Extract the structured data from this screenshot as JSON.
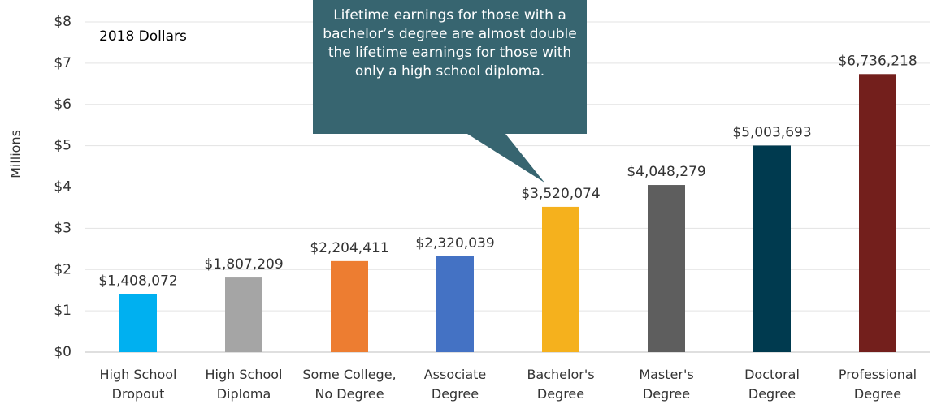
{
  "chart_data": {
    "type": "bar",
    "subtitle": "2018 Dollars",
    "ylabel": "Millions",
    "annotation": "Lifetime earnings for those with a bachelor’s degree are almost double the lifetime earnings for those with only a high school diploma.",
    "categories": [
      "High School Dropout",
      "High School Diploma",
      "Some College, No Degree",
      "Associate Degree",
      "Bachelor's Degree",
      "Master's Degree",
      "Doctoral Degree",
      "Professional Degree"
    ],
    "values": [
      1.408072,
      1.807209,
      2.204411,
      2.320039,
      3.520074,
      4.048279,
      5.003693,
      6.736218
    ],
    "value_labels": [
      "$1,408,072",
      "$1,807,209",
      "$2,204,411",
      "$2,320,039",
      "$3,520,074",
      "$4,048,279",
      "$5,003,693",
      "$6,736,218"
    ],
    "colors": [
      "#00b0f0",
      "#a5a5a5",
      "#ed7d31",
      "#4472c4",
      "#f5b11d",
      "#5e5e5e",
      "#003a4f",
      "#731f1c"
    ],
    "ylim": [
      0,
      8
    ],
    "yticks": [
      {
        "value": 0,
        "label": "$0"
      },
      {
        "value": 1,
        "label": "$1"
      },
      {
        "value": 2,
        "label": "$2"
      },
      {
        "value": 3,
        "label": "$3"
      },
      {
        "value": 4,
        "label": "$4"
      },
      {
        "value": 5,
        "label": "$5"
      },
      {
        "value": 6,
        "label": "$6"
      },
      {
        "value": 7,
        "label": "$7"
      },
      {
        "value": 8,
        "label": "$8"
      }
    ],
    "grid": true
  }
}
